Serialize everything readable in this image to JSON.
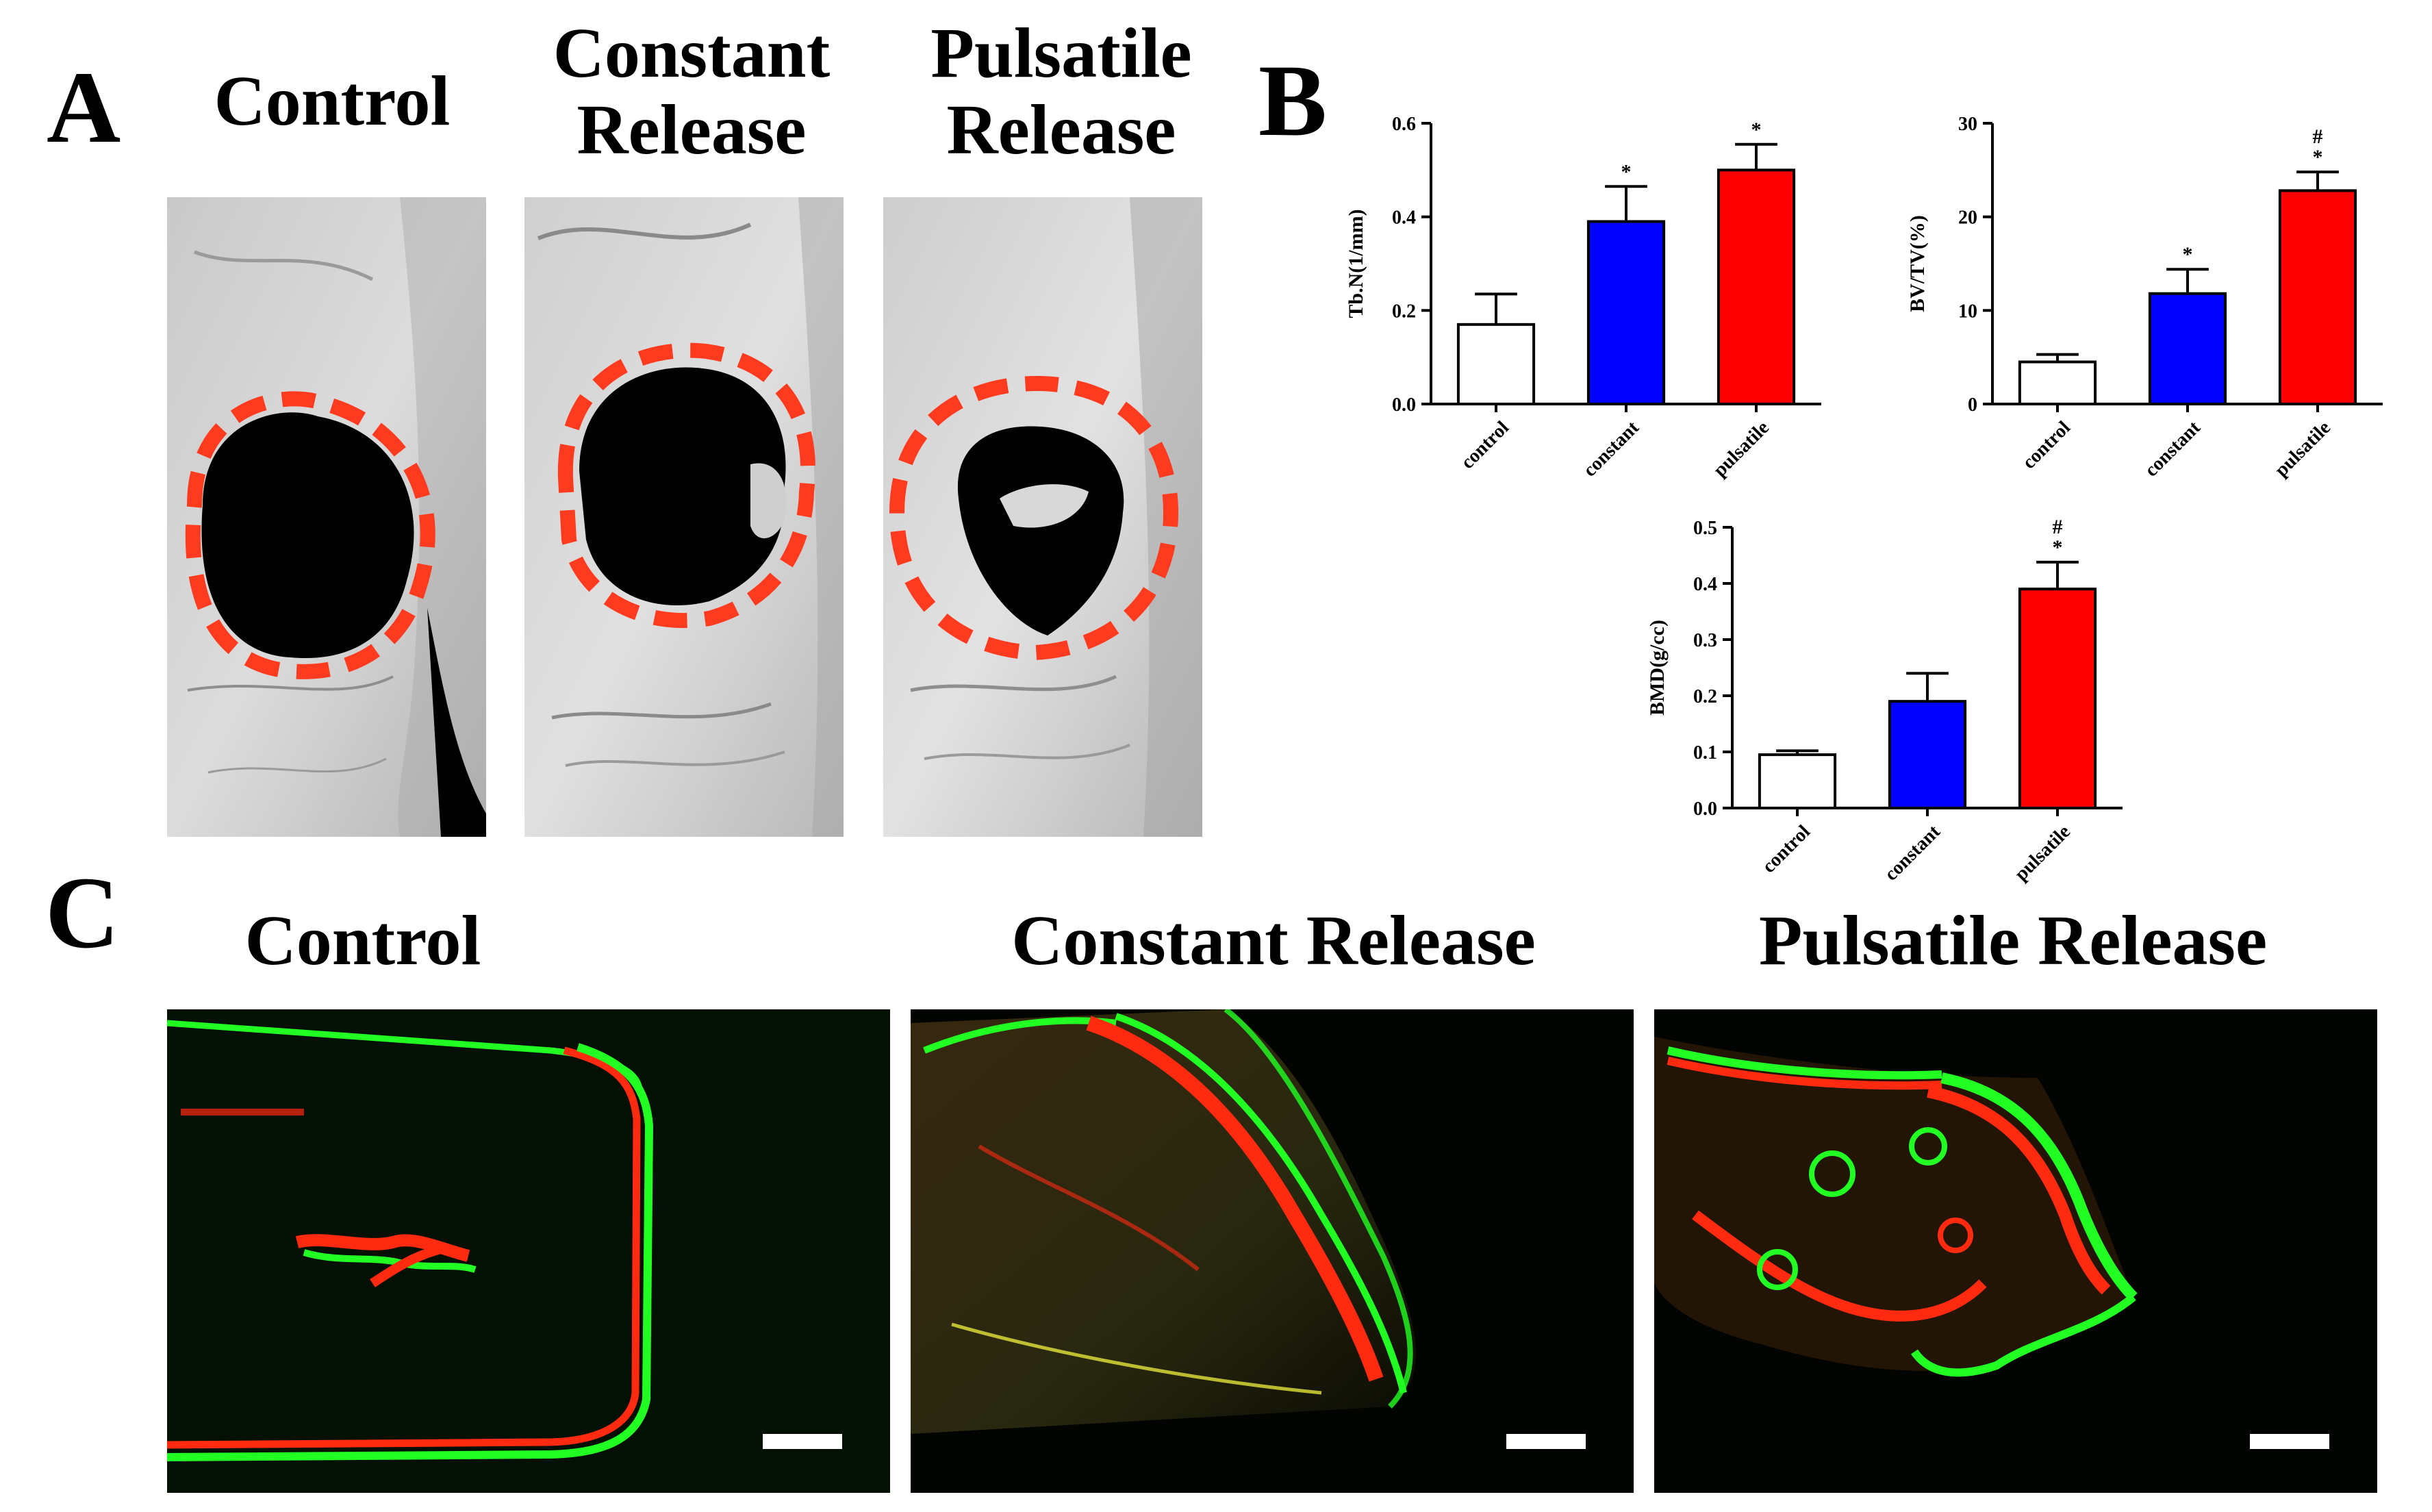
{
  "panel_a": {
    "letter": "A",
    "columns": [
      {
        "title": "Control"
      },
      {
        "title": "Constant Release"
      },
      {
        "title": "Pulsatile Release"
      }
    ]
  },
  "panel_b": {
    "letter": "B"
  },
  "panel_c": {
    "letter": "C",
    "columns": [
      {
        "title": "Control"
      },
      {
        "title": "Constant Release"
      },
      {
        "title": "Pulsatile Release"
      }
    ]
  },
  "colors": {
    "control": "#ffffff",
    "constant": "#0000ff",
    "pulsatile": "#ff0000",
    "ring": "#ff3b1f",
    "label_green": "#22ff22",
    "label_red": "#ff2a10"
  },
  "chart_data": [
    {
      "type": "bar",
      "ylabel": "Tb.N(1/mm)",
      "categories": [
        "control",
        "constant",
        "pulsatile"
      ],
      "values": [
        0.17,
        0.39,
        0.5
      ],
      "errors": [
        0.065,
        0.075,
        0.055
      ],
      "marks": [
        "",
        "*",
        "*"
      ],
      "ylim": [
        0,
        0.6
      ],
      "yticks": [
        "0.0",
        "0.2",
        "0.4",
        "0.6"
      ],
      "grid": false
    },
    {
      "type": "bar",
      "ylabel": "BV/TV(%)",
      "categories": [
        "control",
        "constant",
        "pulsatile"
      ],
      "values": [
        4.5,
        11.8,
        22.8
      ],
      "errors": [
        0.8,
        2.6,
        2.0
      ],
      "marks": [
        "",
        "*",
        "#\n*"
      ],
      "ylim": [
        0,
        30
      ],
      "yticks": [
        "0",
        "10",
        "20",
        "30"
      ],
      "grid": false
    },
    {
      "type": "bar",
      "ylabel": "BMD(g/cc)",
      "categories": [
        "control",
        "constant",
        "pulsatile"
      ],
      "values": [
        0.095,
        0.19,
        0.39
      ],
      "errors": [
        0.007,
        0.05,
        0.048
      ],
      "marks": [
        "",
        "",
        "#\n*"
      ],
      "ylim": [
        0,
        0.5
      ],
      "yticks": [
        "0.0",
        "0.1",
        "0.2",
        "0.3",
        "0.4",
        "0.5"
      ],
      "grid": false
    }
  ]
}
